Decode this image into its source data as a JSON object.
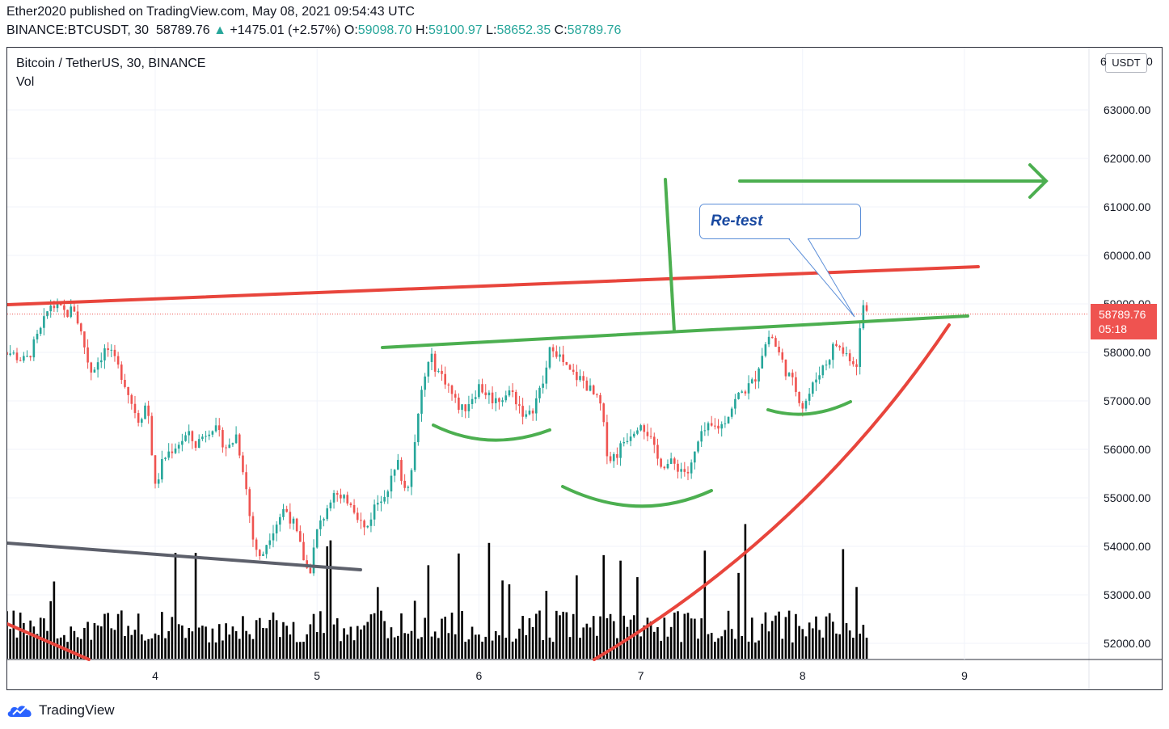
{
  "header": {
    "published": "Ether2020 published on TradingView.com, May 08, 2021 09:54:43 UTC",
    "symbol": "BINANCE:BTCUSDT, 30",
    "last": "58789.76",
    "change": "+1475.01 (+2.57%)",
    "o_label": "O:",
    "o_value": "59098.70",
    "h_label": "H:",
    "h_value": "59100.97",
    "l_label": "L:",
    "l_value": "58652.35",
    "c_label": "C:",
    "c_value": "58789.76",
    "up_arrow": "▲"
  },
  "legend": {
    "title": "Bitcoin / TetherUS, 30, BINANCE",
    "vol": "Vol"
  },
  "price_tag": {
    "price": "58789.76",
    "countdown": "05:18"
  },
  "currency": "USDT",
  "axis_top_cut": "6",
  "axis_top_cut_right": "0",
  "annotation": {
    "text": "Re-test"
  },
  "footer": {
    "brand": "TradingView"
  },
  "colors": {
    "up": "#26a69a",
    "down": "#ef5350",
    "green_line": "#4caf50",
    "red_line": "#e8453c",
    "gray_line": "#5d606b"
  },
  "chart_data": {
    "type": "candlestick",
    "x_ticks": [
      "4",
      "5",
      "6",
      "7",
      "8",
      "9"
    ],
    "y_ticks": [
      "63000.00",
      "62000.00",
      "61000.00",
      "60000.00",
      "59000.00",
      "58000.00",
      "57000.00",
      "56000.00",
      "55000.00",
      "54000.00",
      "53000.00",
      "52000.00"
    ],
    "y_range": [
      51700,
      64000
    ],
    "current_price": 58789.76,
    "ohlc_anchor_points": [
      [
        3.0,
        58200
      ],
      [
        3.1,
        58000
      ],
      [
        3.2,
        57800
      ],
      [
        3.3,
        58500
      ],
      [
        3.35,
        59000
      ],
      [
        3.45,
        58800
      ],
      [
        3.5,
        58900
      ],
      [
        3.55,
        58300
      ],
      [
        3.6,
        57600
      ],
      [
        3.7,
        58100
      ],
      [
        3.8,
        57500
      ],
      [
        3.85,
        57000
      ],
      [
        3.9,
        56600
      ],
      [
        3.95,
        57000
      ],
      [
        4.0,
        55200
      ],
      [
        4.05,
        55800
      ],
      [
        4.1,
        56000
      ],
      [
        4.2,
        56300
      ],
      [
        4.25,
        56100
      ],
      [
        4.35,
        56500
      ],
      [
        4.45,
        56000
      ],
      [
        4.5,
        56300
      ],
      [
        4.55,
        55500
      ],
      [
        4.6,
        54200
      ],
      [
        4.65,
        53700
      ],
      [
        4.7,
        54200
      ],
      [
        4.8,
        54800
      ],
      [
        4.85,
        54500
      ],
      [
        4.95,
        53400
      ],
      [
        5.0,
        54300
      ],
      [
        5.05,
        54700
      ],
      [
        5.1,
        55200
      ],
      [
        5.15,
        54900
      ],
      [
        5.2,
        55000
      ],
      [
        5.3,
        54300
      ],
      [
        5.35,
        54800
      ],
      [
        5.45,
        55300
      ],
      [
        5.5,
        55700
      ],
      [
        5.55,
        55100
      ],
      [
        5.6,
        56000
      ],
      [
        5.65,
        57300
      ],
      [
        5.7,
        57900
      ],
      [
        5.75,
        57600
      ],
      [
        5.8,
        57400
      ],
      [
        5.85,
        57000
      ],
      [
        5.9,
        56800
      ],
      [
        6.0,
        57300
      ],
      [
        6.1,
        57000
      ],
      [
        6.2,
        57200
      ],
      [
        6.25,
        56900
      ],
      [
        6.3,
        56600
      ],
      [
        6.35,
        57000
      ],
      [
        6.4,
        57400
      ],
      [
        6.45,
        58200
      ],
      [
        6.55,
        57600
      ],
      [
        6.65,
        57400
      ],
      [
        6.75,
        56900
      ],
      [
        6.8,
        55800
      ],
      [
        6.85,
        55900
      ],
      [
        6.9,
        56200
      ],
      [
        6.95,
        56400
      ],
      [
        7.0,
        56600
      ],
      [
        7.05,
        56300
      ],
      [
        7.1,
        55800
      ],
      [
        7.15,
        55700
      ],
      [
        7.2,
        55700
      ],
      [
        7.3,
        55500
      ],
      [
        7.35,
        56100
      ],
      [
        7.4,
        56400
      ],
      [
        7.5,
        56500
      ],
      [
        7.6,
        57100
      ],
      [
        7.7,
        57400
      ],
      [
        7.75,
        58000
      ],
      [
        7.8,
        58400
      ],
      [
        7.85,
        58000
      ],
      [
        7.9,
        57600
      ],
      [
        7.95,
        57300
      ],
      [
        8.0,
        56900
      ],
      [
        8.05,
        57200
      ],
      [
        8.1,
        57600
      ],
      [
        8.15,
        57800
      ],
      [
        8.2,
        58200
      ],
      [
        8.25,
        58000
      ],
      [
        8.3,
        57900
      ],
      [
        8.33,
        57700
      ],
      [
        8.35,
        58300
      ],
      [
        8.37,
        59000
      ],
      [
        8.4,
        58789.76
      ]
    ]
  }
}
